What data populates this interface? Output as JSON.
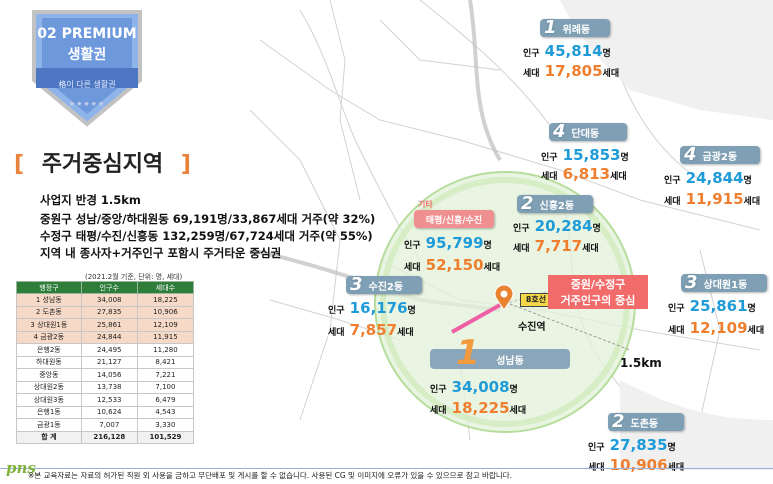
{
  "badge": {
    "line1": "02 PREMIUM",
    "line2": "생활권",
    "subtitle": "格이 다른 생활권",
    "stars": "★★★★★"
  },
  "heading": {
    "open": "[",
    "title": "주거중심지역",
    "close": "]"
  },
  "description": [
    "사업지 반경 1.5km",
    "중원구 성남/중앙/하대원동 69,191명/33,867세대 거주(약 32%)",
    "수정구 태평/수진/신흥동 132,259명/67,724세대 거주(약 55%)",
    "지역 내 종사자+거주인구 포함시 주거타운 중심권"
  ],
  "table": {
    "note": "(2021.2월 기준, 단위: 명, 세대)",
    "headers": [
      "행정구",
      "인구수",
      "세대수"
    ],
    "rows": [
      {
        "name": "1 성남동",
        "pop": "34,008",
        "hh": "18,225",
        "hl": true
      },
      {
        "name": "2 도촌동",
        "pop": "27,835",
        "hh": "10,906",
        "hl": true
      },
      {
        "name": "3 상대원1동",
        "pop": "25,861",
        "hh": "12,109",
        "hl": true
      },
      {
        "name": "4 금광2동",
        "pop": "24,844",
        "hh": "11,915",
        "hl": true
      },
      {
        "name": "은행2동",
        "pop": "24,495",
        "hh": "11,280",
        "hl": false
      },
      {
        "name": "하대원동",
        "pop": "21,127",
        "hh": "8,421",
        "hl": false
      },
      {
        "name": "중앙동",
        "pop": "14,056",
        "hh": "7,221",
        "hl": false
      },
      {
        "name": "상대원2동",
        "pop": "13,738",
        "hh": "7,100",
        "hl": false
      },
      {
        "name": "상대원3동",
        "pop": "12,533",
        "hh": "6,479",
        "hl": false
      },
      {
        "name": "은행1동",
        "pop": "10,624",
        "hh": "4,543",
        "hl": false
      },
      {
        "name": "금광1동",
        "pop": "7,007",
        "hh": "3,330",
        "hl": false
      }
    ],
    "total": {
      "name": "합 계",
      "pop": "216,128",
      "hh": "101,529"
    }
  },
  "labels": {
    "pop_label": "인구",
    "hh_label": "세대",
    "pop_unit": "명",
    "hh_unit": "세대"
  },
  "districts": {
    "wirye": {
      "num": "1",
      "name": "위례동",
      "pop": "45,814",
      "hh": "17,805"
    },
    "dangae": {
      "num": "4",
      "name": "단대동",
      "pop": "15,853",
      "hh": "6,813"
    },
    "geumgwang2": {
      "num": "4",
      "name": "금광2동",
      "pop": "24,844",
      "hh": "11,915"
    },
    "sinheung2": {
      "num": "2",
      "name": "신흥2동",
      "pop": "20,284",
      "hh": "7,717"
    },
    "taepyeong": {
      "num": "기타",
      "name": "태평/신흥/수진",
      "pop": "95,799",
      "hh": "52,150"
    },
    "sujin2": {
      "num": "3",
      "name": "수진2동",
      "pop": "16,176",
      "hh": "7,857"
    },
    "sangdaewon1": {
      "num": "3",
      "name": "상대원1동",
      "pop": "25,861",
      "hh": "12,109"
    },
    "seongnam": {
      "num": "1",
      "name": "성남동",
      "pop": "34,008",
      "hh": "18,225"
    },
    "dochon": {
      "num": "2",
      "name": "도촌동",
      "pop": "27,835",
      "hh": "10,906"
    }
  },
  "map": {
    "callout_line1": "중원/수정구",
    "callout_line2": "거주인구의 중심",
    "station": "수진역",
    "line_badge": "8호선",
    "radius_label": "1.5km",
    "colors": {
      "circle": "#a6d88a",
      "pink": "#ef5fa6",
      "pop": "#1f9bd8",
      "hh": "#ef7f2f"
    }
  },
  "footer": {
    "logo": "pns",
    "notice": "※본 교육자료는 자료의 허가된 직원 외 사용을 금하고 무단배포 및 게시를 할 수 없습니다. 사용된 CG 및 이미지에 오류가 있을 수 있으므로 참고 바랍니다."
  }
}
